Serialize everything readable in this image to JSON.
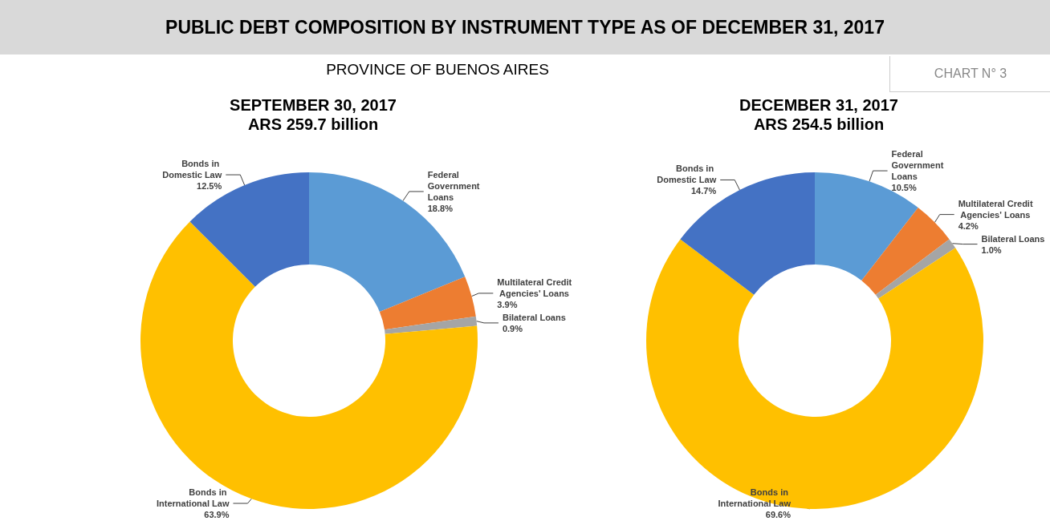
{
  "chart_data": [
    {
      "type": "donut",
      "title": "SEPTEMBER 30, 2017",
      "subtitle": "ARS 259.7 billion",
      "annotations": [
        "PUBLIC DEBT COMPOSITION BY INSTRUMENT TYPE AS OF DECEMBER 31, 2017",
        "PROVINCE OF BUENOS AIRES",
        "CHART N° 3"
      ],
      "categories": [
        "Federal Government Loans",
        "Multilateral Credit Agencies' Loans",
        "Bilateral Loans",
        "Bonds in International Law",
        "Bonds in Domestic Law"
      ],
      "values": [
        18.8,
        3.9,
        0.9,
        63.9,
        12.5
      ],
      "value_labels": [
        "18.8%",
        "3.9%",
        "0.9%",
        "63.9%",
        "12.5%"
      ],
      "colors": [
        "#5b9bd5",
        "#ed7d31",
        "#a5a5a5",
        "#ffc000",
        "#4472c4"
      ],
      "legend": false
    },
    {
      "type": "donut",
      "title": "DECEMBER 31, 2017",
      "subtitle": "ARS 254.5 billion",
      "categories": [
        "Federal Government Loans",
        "Multilateral Credit Agencies' Loans",
        "Bilateral Loans",
        "Bonds in International Law",
        "Bonds in Domestic Law"
      ],
      "values": [
        10.5,
        4.2,
        1.0,
        69.6,
        14.7
      ],
      "value_labels": [
        "10.5%",
        "4.2%",
        "1.0%",
        "69.6%",
        "14.7%"
      ],
      "colors": [
        "#5b9bd5",
        "#ed7d31",
        "#a5a5a5",
        "#ffc000",
        "#4472c4"
      ],
      "legend": false
    }
  ]
}
